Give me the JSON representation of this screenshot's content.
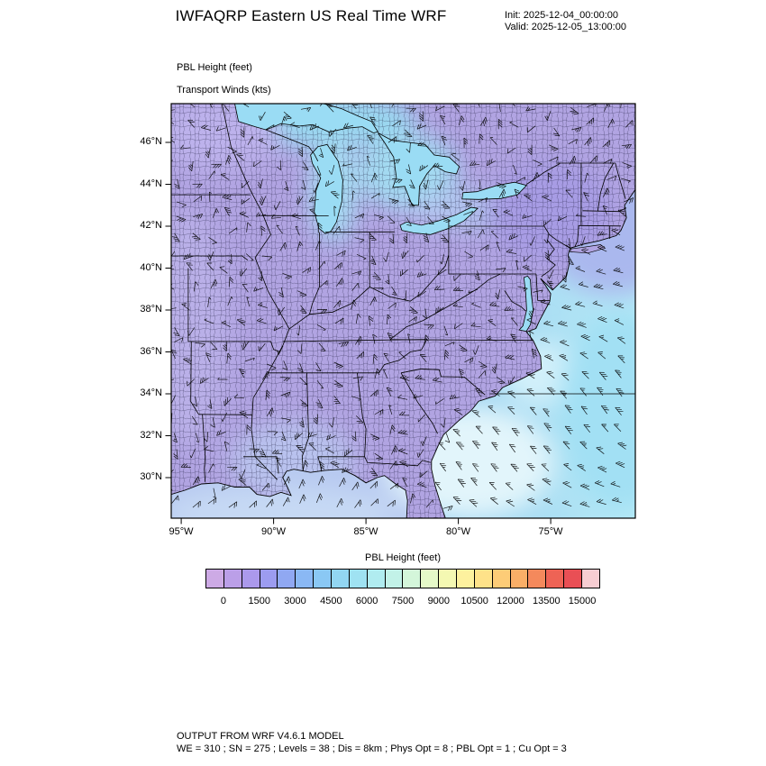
{
  "header": {
    "title": "IWFAQRP Eastern US Real Time WRF",
    "init": "Init: 2025-12-04_00:00:00",
    "valid": "Valid: 2025-12-05_13:00:00"
  },
  "map": {
    "field_label": "PBL Height   (feet)",
    "wind_label": "Transport Winds   (kts)",
    "lat_tick_labels": [
      "46°N",
      "44°N",
      "42°N",
      "40°N",
      "38°N",
      "36°N",
      "34°N",
      "32°N",
      "30°N"
    ],
    "lat_tick_values": [
      46,
      44,
      42,
      40,
      38,
      36,
      34,
      32,
      30
    ],
    "lon_tick_labels": [
      "95°W",
      "90°W",
      "85°W",
      "80°W",
      "75°W"
    ],
    "lon_tick_values": [
      95,
      90,
      85,
      80,
      75
    ]
  },
  "colorbar": {
    "title": "PBL Height  (feet)",
    "tick_labels": [
      "0",
      "1500",
      "3000",
      "4500",
      "6000",
      "7500",
      "9000",
      "10500",
      "12000",
      "13500",
      "15000"
    ],
    "cell_colors": [
      "#cdaae5",
      "#bb9fe8",
      "#ab99ec",
      "#9c9cf0",
      "#90a8f2",
      "#8ab8f4",
      "#8ac8f4",
      "#92d6f2",
      "#9fe2f2",
      "#b0ecf0",
      "#c2f2e8",
      "#d4f6da",
      "#e6f9c8",
      "#f4f8b2",
      "#fdf19e",
      "#fee289",
      "#fdcc77",
      "#f9ae67",
      "#f4895c",
      "#ee6355",
      "#e94f55",
      "#f7cdd2"
    ]
  },
  "footer": {
    "line1": "OUTPUT FROM WRF V4.6.1 MODEL",
    "line2": "WE = 310 ; SN = 275 ; Levels = 38 ; Dis = 8km ; Phys Opt = 8 ; PBL Opt = 1 ; Cu Opt = 3"
  },
  "chart_data": {
    "type": "heatmap",
    "title": "PBL Height (feet) with Transport Winds (kts)",
    "colorbar_ticks": [
      0,
      1500,
      3000,
      4500,
      6000,
      7500,
      9000,
      10500,
      12000,
      13500,
      15000
    ],
    "lat_axis_ticks_deg_n": [
      46,
      44,
      42,
      40,
      38,
      36,
      34,
      32,
      30
    ],
    "lon_axis_ticks_deg_w": [
      95,
      90,
      85,
      80,
      75
    ],
    "summary": "PBL heights of roughly 0-1500 ft (purple shades) cover most land areas; about 3000-6000 ft (blue/cyan shades) over the Great Lakes, the Atlantic off the Southeast coast, and the Gulf coast. Wind barbs plotted everywhere."
  }
}
